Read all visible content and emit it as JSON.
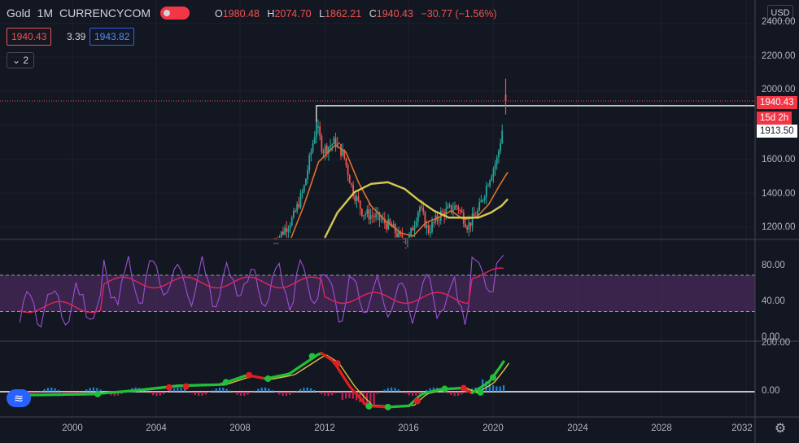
{
  "header": {
    "symbol": "Gold",
    "interval": "1M",
    "exchange": "CURRENCYCOM",
    "ohlc": {
      "o_label": "O",
      "o": "1980.48",
      "h_label": "H",
      "h": "2074.70",
      "l_label": "L",
      "l": "1862.21",
      "c_label": "C",
      "c": "1940.43",
      "change": "−30.77 (−1.56%)"
    }
  },
  "indicator_pills": {
    "price_red": "1940.43",
    "spread": "3.39",
    "price_blue": "1943.82"
  },
  "collapse_button": "2",
  "currency": "USD",
  "price_axis": {
    "labels": [
      "2400.00",
      "2200.00",
      "2000.00",
      "1600.00",
      "1400.00",
      "1200.00"
    ],
    "last_price": "1940.43",
    "countdown": "15d 2h",
    "close_level": "1913.50"
  },
  "rsi_axis": {
    "labels": [
      "80.00",
      "40.00",
      "0.00"
    ]
  },
  "macd_axis": {
    "labels": [
      "200.00",
      "0.00"
    ]
  },
  "x_axis": {
    "labels": [
      "2000",
      "2004",
      "2008",
      "2012",
      "2016",
      "2020",
      "2024",
      "2028",
      "2032"
    ]
  },
  "colors": {
    "background": "#131722",
    "up": "#26a69a",
    "down": "#ef5350",
    "ma_orange": "#e0702d",
    "ma_yellow": "#d6c84f",
    "rsi_purple": "#9c4fd6",
    "rsi_red": "#e0245e",
    "rsi_band": "#4a2a5a",
    "macd_green": "#22c03a",
    "macd_red": "#e02020",
    "macd_yellow": "#e0c040",
    "hist_blue": "#2196f3",
    "hist_red": "#e0245e"
  },
  "chart_data": {
    "type": "candlestick",
    "x_range": [
      1997.5,
      2032.5
    ],
    "y_range": [
      1080,
      2420
    ],
    "candles_summary": [
      {
        "year": 2011.7,
        "high": 1920,
        "low": 1540
      },
      {
        "year": 2012.8,
        "high": 1800,
        "low": 1600
      },
      {
        "year": 2013.5,
        "high": 1600,
        "low": 1190
      },
      {
        "year": 2015.9,
        "high": 1100,
        "low": 1050
      },
      {
        "year": 2016.5,
        "high": 1375,
        "low": 1250
      },
      {
        "year": 2018.8,
        "high": 1200,
        "low": 1160
      },
      {
        "year": 2019.8,
        "high": 1560,
        "low": 1450
      },
      {
        "year": 2020.6,
        "high": 2074.7,
        "low": 1862.21
      }
    ],
    "last_close": 1940.43
  }
}
